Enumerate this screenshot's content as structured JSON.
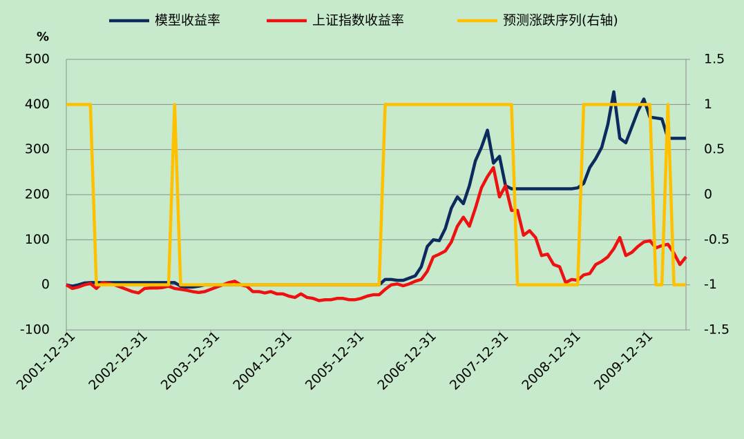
{
  "chart_data": {
    "type": "line",
    "y_label": "%",
    "categories": [
      "2001-12-31",
      null,
      null,
      null,
      null,
      null,
      null,
      null,
      null,
      null,
      null,
      null,
      "2002-12-31",
      null,
      null,
      null,
      null,
      null,
      null,
      null,
      null,
      null,
      null,
      null,
      "2003-12-31",
      null,
      null,
      null,
      null,
      null,
      null,
      null,
      null,
      null,
      null,
      null,
      "2004-12-31",
      null,
      null,
      null,
      null,
      null,
      null,
      null,
      null,
      null,
      null,
      null,
      "2005-12-31",
      null,
      null,
      null,
      null,
      null,
      null,
      null,
      null,
      null,
      null,
      null,
      "2006-12-31",
      null,
      null,
      null,
      null,
      null,
      null,
      null,
      null,
      null,
      null,
      null,
      "2007-12-31",
      null,
      null,
      null,
      null,
      null,
      null,
      null,
      null,
      null,
      null,
      null,
      "2008-12-31",
      null,
      null,
      null,
      null,
      null,
      null,
      null,
      null,
      null,
      null,
      null,
      "2009-12-31",
      null,
      null,
      null,
      null,
      null,
      null,
      null
    ],
    "series": [
      {
        "name": "模型收益率",
        "color": "#0d2a5e",
        "values": [
          0,
          -3,
          0,
          4,
          5,
          5,
          5,
          5,
          5,
          5,
          5,
          5,
          5,
          5,
          5,
          5,
          5,
          5,
          5,
          -3,
          -5,
          -5,
          -3,
          0,
          0,
          0,
          0,
          0,
          0,
          0,
          0,
          0,
          0,
          0,
          0,
          0,
          0,
          0,
          0,
          0,
          0,
          0,
          0,
          0,
          0,
          0,
          0,
          0,
          0,
          0,
          0,
          0,
          0,
          12,
          12,
          10,
          10,
          15,
          20,
          40,
          85,
          100,
          98,
          125,
          170,
          195,
          180,
          220,
          275,
          305,
          343,
          270,
          285,
          220,
          213,
          213,
          213,
          213,
          213,
          213,
          213,
          213,
          213,
          213,
          213,
          215,
          225,
          260,
          280,
          305,
          355,
          428,
          325,
          315,
          350,
          385,
          412,
          372,
          370,
          368,
          325,
          325,
          325,
          325
        ]
      },
      {
        "name": "上证指数收益率",
        "color": "#ee1111",
        "values": [
          0,
          -8,
          -5,
          0,
          3,
          -8,
          5,
          3,
          0,
          -5,
          -10,
          -15,
          -18,
          -8,
          -7,
          -7,
          -6,
          -3,
          -8,
          -10,
          -12,
          -15,
          -17,
          -15,
          -10,
          -5,
          0,
          5,
          8,
          0,
          -3,
          -15,
          -15,
          -18,
          -15,
          -20,
          -20,
          -25,
          -28,
          -20,
          -28,
          -30,
          -35,
          -33,
          -33,
          -30,
          -30,
          -33,
          -33,
          -30,
          -25,
          -22,
          -22,
          -10,
          0,
          2,
          -2,
          2,
          8,
          12,
          30,
          62,
          68,
          75,
          95,
          130,
          150,
          130,
          170,
          215,
          240,
          260,
          195,
          220,
          165,
          165,
          110,
          120,
          105,
          65,
          68,
          45,
          40,
          5,
          12,
          10,
          22,
          25,
          45,
          52,
          62,
          80,
          105,
          65,
          72,
          85,
          95,
          98,
          82,
          87,
          90,
          70,
          45,
          62
        ]
      },
      {
        "name": "预测涨跌序列(右轴)",
        "color": "#ffc000",
        "axis": "y2",
        "values": [
          1,
          1,
          1,
          1,
          1,
          -1,
          -1,
          -1,
          -1,
          -1,
          -1,
          -1,
          -1,
          -1,
          -1,
          -1,
          -1,
          -1,
          1,
          -1,
          -1,
          -1,
          -1,
          -1,
          -1,
          -1,
          -1,
          -1,
          -1,
          -1,
          -1,
          -1,
          -1,
          -1,
          -1,
          -1,
          -1,
          -1,
          -1,
          -1,
          -1,
          -1,
          -1,
          -1,
          -1,
          -1,
          -1,
          -1,
          -1,
          -1,
          -1,
          -1,
          -1,
          1,
          1,
          1,
          1,
          1,
          1,
          1,
          1,
          1,
          1,
          1,
          1,
          1,
          1,
          1,
          1,
          1,
          1,
          1,
          1,
          1,
          1,
          -1,
          -1,
          -1,
          -1,
          -1,
          -1,
          -1,
          -1,
          -1,
          -1,
          -1,
          1,
          1,
          1,
          1,
          1,
          1,
          1,
          1,
          1,
          1,
          1,
          1,
          -1,
          -1,
          1,
          -1,
          -1,
          -1
        ]
      }
    ],
    "ylim": [
      -100,
      500
    ],
    "yticks": [
      -100,
      0,
      100,
      200,
      300,
      400,
      500
    ],
    "y2lim": [
      -1.5,
      1.5
    ],
    "y2ticks": [
      -1.5,
      -1,
      -0.5,
      0,
      0.5,
      1,
      1.5
    ],
    "grid": true,
    "legend": "top"
  }
}
